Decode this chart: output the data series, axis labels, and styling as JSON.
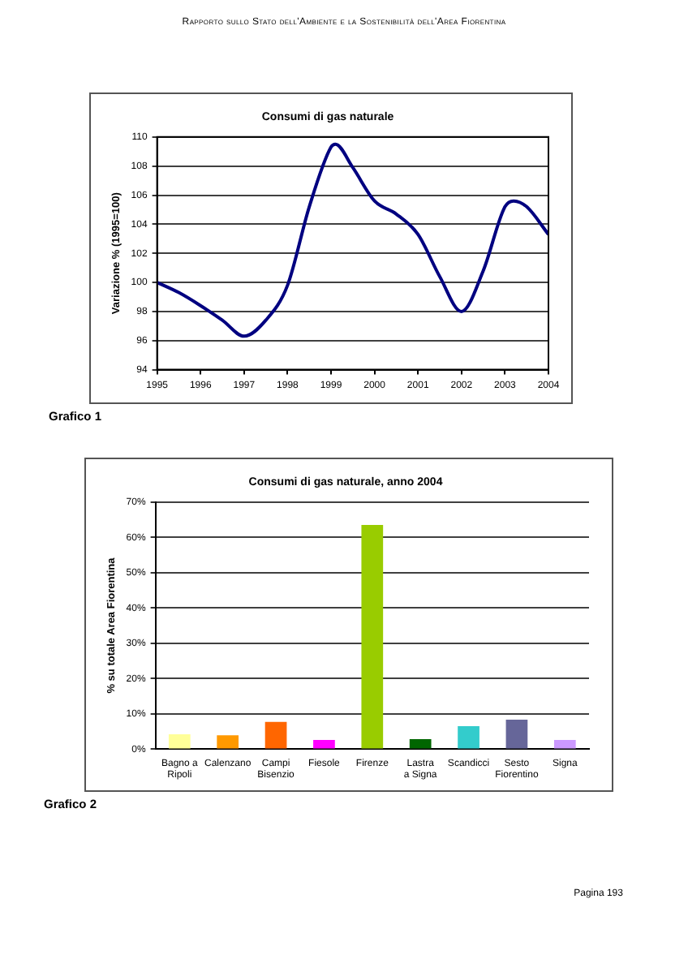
{
  "chart_data": [
    {
      "type": "line",
      "title": "Consumi di gas naturale",
      "ylabel": "Variazione % (1995=100)",
      "annotations": [
        "Rapporto sullo Stato dell'Ambiente e la Sostenibilità dell'Area Fiorentina",
        "Grafico 1"
      ],
      "x": [
        1995,
        1995.5,
        1996,
        1996.5,
        1997,
        1997.5,
        1998,
        1998.5,
        1999,
        1999.1,
        1999.5,
        2000,
        2000.5,
        2001,
        2001.5,
        2002,
        2002.5,
        2003,
        2003.2,
        2003.5,
        2004
      ],
      "series": [
        {
          "color": "#000080",
          "values": [
            100.0,
            99.3,
            98.4,
            97.4,
            96.3,
            97.4,
            99.8,
            105.2,
            109.3,
            109.5,
            107.9,
            105.6,
            104.7,
            103.3,
            100.4,
            98.0,
            100.8,
            105.2,
            105.6,
            105.2,
            103.3
          ]
        }
      ],
      "xlim": [
        1995,
        2004
      ],
      "xticks": [
        1995,
        1996,
        1997,
        1998,
        1999,
        2000,
        2001,
        2002,
        2003,
        2004
      ],
      "ylim": [
        94,
        110
      ],
      "yticks": [
        94,
        96,
        98,
        100,
        102,
        104,
        106,
        108,
        110
      ],
      "grid": "y",
      "marker": "none",
      "line_style": "solid"
    },
    {
      "type": "bar",
      "title": "Consumi di gas naturale, anno 2004",
      "ylabel": "% su totale Area Fiorentina",
      "annotations": [
        "Grafico 2",
        "Pagina 193"
      ],
      "categories": [
        "Bagno a Ripoli",
        "Calenzano",
        "Campi Bisenzio",
        "Fiesole",
        "Firenze",
        "Lastra a Signa",
        "Scandicci",
        "Sesto Fiorentino",
        "Signa"
      ],
      "values": [
        4.2,
        3.9,
        7.7,
        2.6,
        63.5,
        2.8,
        6.5,
        8.3,
        2.6
      ],
      "colors": [
        "#ffff99",
        "#ff9900",
        "#ff6600",
        "#ff00ff",
        "#99cc00",
        "#006600",
        "#33cccc",
        "#666699",
        "#cc99ff"
      ],
      "ylim": [
        0,
        70
      ],
      "yticks": [
        {
          "value": 0,
          "label": "0%"
        },
        {
          "value": 10,
          "label": "10%"
        },
        {
          "value": 20,
          "label": "20%"
        },
        {
          "value": 30,
          "label": "30%"
        },
        {
          "value": 40,
          "label": "40%"
        },
        {
          "value": 50,
          "label": "50%"
        },
        {
          "value": 60,
          "label": "60%"
        },
        {
          "value": 70,
          "label": "70%"
        }
      ],
      "grid": "y"
    }
  ]
}
